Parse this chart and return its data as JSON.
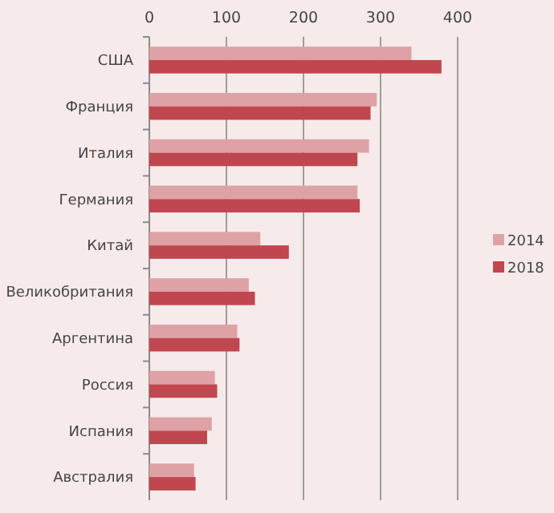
{
  "chart_data": {
    "type": "bar",
    "orientation": "horizontal",
    "categories": [
      "США",
      "Франция",
      "Италия",
      "Германия",
      "Китай",
      "Великобритания",
      "Аргентина",
      "Россия",
      "Испания",
      "Австралия"
    ],
    "series": [
      {
        "name": "2014",
        "color": "#dea2a6",
        "values": [
          340,
          295,
          285,
          270,
          144,
          129,
          114,
          85,
          81,
          58
        ]
      },
      {
        "name": "2018",
        "color": "#c0474f",
        "values": [
          379,
          287,
          270,
          273,
          181,
          137,
          117,
          88,
          75,
          60
        ]
      }
    ],
    "xlim": [
      0,
      400
    ],
    "xticks": [
      0,
      100,
      200,
      300,
      400
    ],
    "grid": "x",
    "legend": "right"
  }
}
